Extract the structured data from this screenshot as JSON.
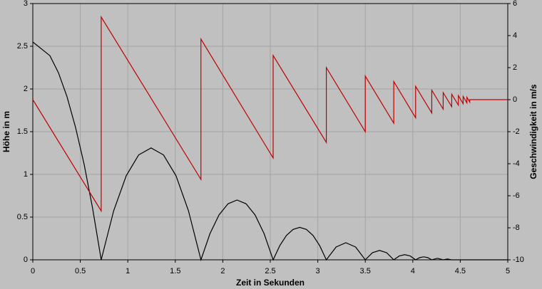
{
  "chart_data": {
    "type": "line",
    "xlabel": "Zeit in Sekunden",
    "ylabel": "Höhe in m",
    "y2label": "Geschwindigkeit in m/s",
    "xlim": [
      0,
      5
    ],
    "xticks": [
      0,
      0.5,
      1,
      1.5,
      2,
      2.5,
      3,
      3.5,
      4,
      4.5,
      5
    ],
    "ylim": [
      0,
      3
    ],
    "yticks": [
      0,
      0.5,
      1,
      1.5,
      2,
      2.5,
      3
    ],
    "y2lim": [
      -10,
      6
    ],
    "y2ticks": [
      -10,
      -8,
      -6,
      -4,
      -2,
      0,
      2,
      4,
      6
    ],
    "grid": true,
    "series": [
      {
        "color": "#000000",
        "x": [
          0,
          0.18,
          0.27,
          0.36,
          0.45,
          0.54,
          0.63,
          0.72,
          0.851,
          0.983,
          1.114,
          1.245,
          1.376,
          1.508,
          1.639,
          1.77,
          1.865,
          1.96,
          2.055,
          2.15,
          2.245,
          2.34,
          2.435,
          2.53,
          2.6,
          2.67,
          2.74,
          2.81,
          2.88,
          2.95,
          3.02,
          3.09,
          3.193,
          3.295,
          3.398,
          3.5,
          3.575,
          3.65,
          3.725,
          3.8,
          3.858,
          3.915,
          3.973,
          4.03,
          4.073,
          4.115,
          4.158,
          4.2,
          4.26,
          4.32,
          4.365,
          4.41,
          5
        ],
        "values": [
          2.55,
          2.39,
          2.19,
          1.91,
          1.55,
          1.12,
          0.6,
          0,
          0.573,
          0.983,
          1.228,
          1.31,
          1.228,
          0.983,
          0.573,
          0,
          0.306,
          0.525,
          0.656,
          0.7,
          0.656,
          0.525,
          0.306,
          0,
          0.166,
          0.285,
          0.356,
          0.38,
          0.356,
          0.285,
          0.166,
          0,
          0.15,
          0.2,
          0.15,
          0,
          0.083,
          0.11,
          0.083,
          0,
          0.045,
          0.06,
          0.045,
          0,
          0.026,
          0.035,
          0.026,
          0,
          0.018,
          0,
          0.01,
          0,
          0
        ]
      },
      {
        "color": "#c00000",
        "axis": "y2",
        "x": [
          0,
          0.72,
          0.72,
          1.77,
          1.77,
          2.53,
          2.53,
          3.09,
          3.09,
          3.5,
          3.5,
          3.8,
          3.8,
          4.03,
          4.03,
          4.2,
          4.2,
          4.32,
          4.32,
          4.41,
          4.41,
          4.48,
          4.48,
          4.53,
          4.53,
          4.57,
          4.57,
          4.6,
          4.6,
          5
        ],
        "values": [
          0,
          -6.95,
          5.16,
          -4.98,
          3.78,
          -3.64,
          2.76,
          -2.67,
          2.0,
          -2.0,
          1.47,
          -1.47,
          1.13,
          -1.13,
          0.83,
          -0.83,
          0.59,
          -0.59,
          0.44,
          -0.44,
          0.34,
          -0.34,
          0.25,
          -0.25,
          0.2,
          -0.2,
          0.15,
          -0.15,
          0,
          0
        ]
      }
    ]
  }
}
